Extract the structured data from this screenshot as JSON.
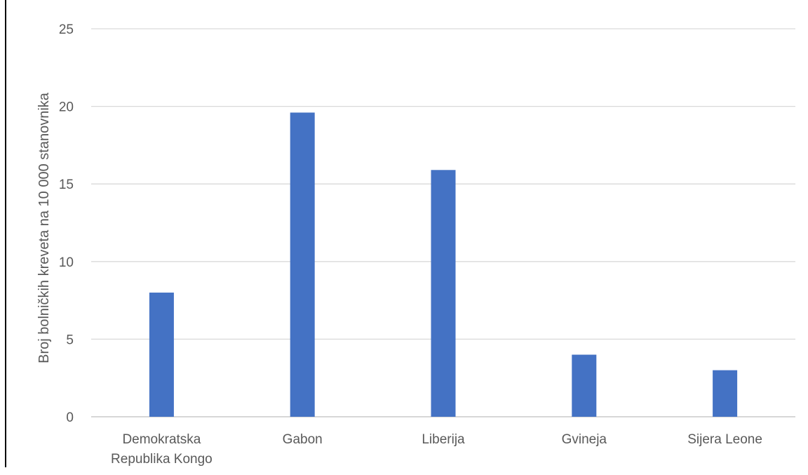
{
  "chart_data": {
    "type": "bar",
    "title": "",
    "xlabel": "",
    "ylabel": "Broj bolničkih kreveta na 10 000 stanovnika",
    "categories": [
      [
        "Demokratska",
        "Republika Kongo"
      ],
      [
        "Gabon"
      ],
      [
        "Liberija"
      ],
      [
        "Gvineja"
      ],
      [
        "Sijera Leone"
      ]
    ],
    "values": [
      8,
      19.6,
      15.9,
      4,
      3
    ],
    "ylim": [
      0,
      25
    ],
    "yticks": [
      0,
      5,
      10,
      15,
      20,
      25
    ],
    "grid": true,
    "legend": "none",
    "bar_color": "#4472C4",
    "grid_color": "#D9D9D9",
    "axis_color": "#BFBFBF",
    "text_color": "#595959"
  }
}
